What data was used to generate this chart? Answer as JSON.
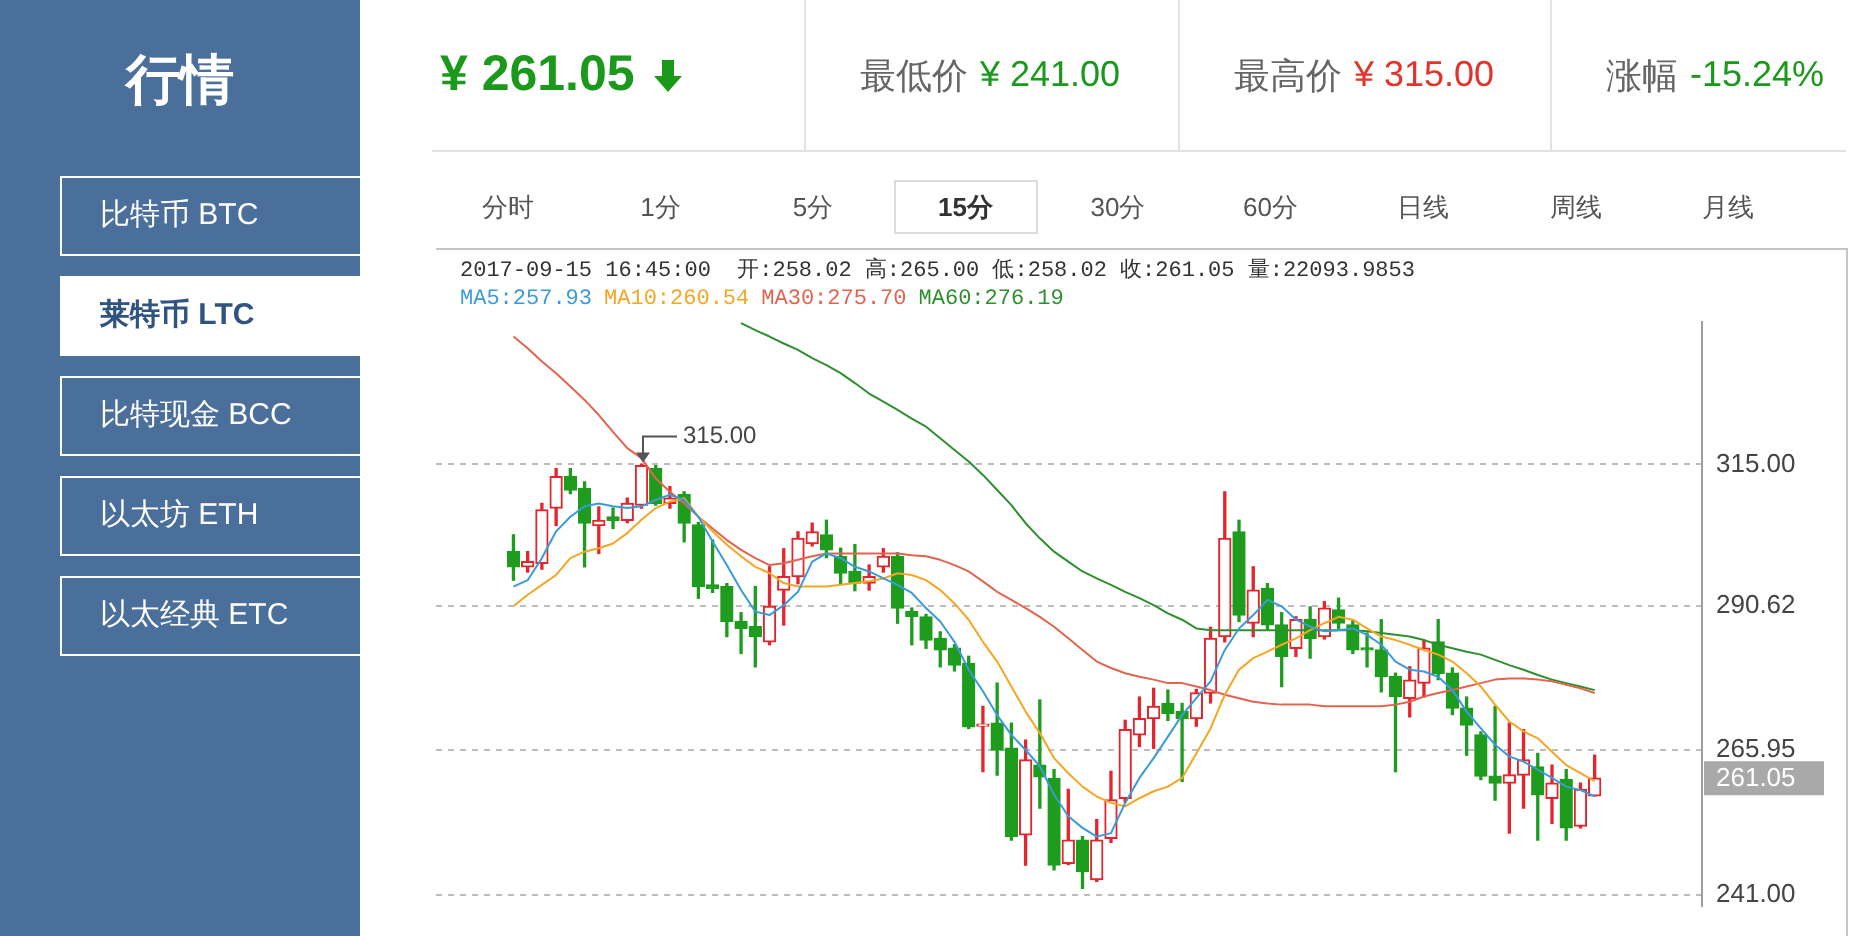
{
  "chart_data": [
    {
      "type": "other",
      "title": "行情",
      "annotations": [
        "比特币 BTC",
        "莱特币 LTC",
        "比特现金 BCC",
        "以太坊 ETH",
        "以太经典 ETC"
      ]
    },
    {
      "type": "other",
      "annotations": [
        "¥ 261.05",
        "最低价 ¥ 241.00",
        "最高价 ¥ 315.00",
        "涨幅 -15.24%"
      ]
    },
    {
      "type": "other",
      "annotations": [
        "分时",
        "1分",
        "5分",
        "15分",
        "30分",
        "60分",
        "日线",
        "周线",
        "月线"
      ]
    },
    {
      "type": "candlestick",
      "categories": [
        null,
        null,
        null,
        null,
        null,
        null,
        null,
        null,
        null,
        null,
        null,
        null,
        null,
        null,
        null,
        null,
        null,
        null,
        null,
        null,
        null,
        null,
        null,
        null,
        null,
        null,
        null,
        null,
        null,
        null,
        null,
        null,
        null,
        null,
        null,
        null,
        null,
        null,
        null,
        null,
        null,
        null,
        null,
        null,
        null,
        null,
        null,
        null,
        null,
        null,
        null,
        null,
        null,
        null,
        null,
        null,
        null,
        null,
        null,
        null,
        null,
        null,
        null,
        null,
        null,
        null,
        null,
        null,
        null,
        null,
        null,
        null,
        null,
        null,
        null,
        null,
        null
      ],
      "ohlc": [
        [
          300.0,
          302.9,
          295.1,
          297.4
        ],
        [
          297.4,
          300.0,
          296.5,
          298.3
        ],
        [
          298.0,
          308.3,
          297.0,
          307.2
        ],
        [
          307.5,
          314.3,
          304.5,
          312.9
        ],
        [
          312.9,
          314.3,
          310.0,
          310.6
        ],
        [
          310.9,
          312.0,
          297.4,
          304.9
        ],
        [
          304.5,
          307.7,
          299.7,
          305.4
        ],
        [
          306.0,
          307.5,
          304.0,
          305.4
        ],
        [
          305.4,
          309.2,
          305.0,
          308.3
        ],
        [
          308.0,
          315.0,
          307.5,
          314.8
        ],
        [
          314.3,
          314.8,
          308.0,
          308.3
        ],
        [
          308.3,
          311.2,
          307.5,
          309.2
        ],
        [
          309.8,
          310.3,
          301.7,
          304.9
        ],
        [
          304.6,
          305.0,
          292.0,
          294.0
        ],
        [
          294.3,
          302.0,
          293.0,
          293.7
        ],
        [
          294.0,
          294.5,
          285.4,
          288.0
        ],
        [
          288.0,
          289.5,
          282.5,
          286.8
        ],
        [
          287.1,
          294.0,
          280.2,
          285.4
        ],
        [
          284.5,
          297.4,
          284.0,
          290.6
        ],
        [
          293.4,
          300.5,
          287.4,
          295.7
        ],
        [
          295.7,
          303.4,
          294.5,
          302.3
        ],
        [
          301.4,
          304.9,
          301.0,
          303.4
        ],
        [
          302.9,
          305.4,
          299.0,
          300.3
        ],
        [
          299.2,
          300.6,
          294.5,
          296.3
        ],
        [
          296.6,
          301.2,
          293.3,
          294.6
        ],
        [
          294.6,
          297.7,
          293.4,
          295.7
        ],
        [
          297.4,
          300.5,
          296.5,
          299.2
        ],
        [
          299.2,
          299.8,
          287.7,
          290.3
        ],
        [
          289.7,
          290.3,
          284.0,
          288.9
        ],
        [
          288.8,
          289.2,
          283.4,
          284.8
        ],
        [
          285.1,
          286.2,
          280.2,
          283.1
        ],
        [
          283.4,
          284.0,
          279.5,
          280.5
        ],
        [
          280.8,
          282.0,
          269.6,
          269.9
        ],
        [
          270.0,
          273.4,
          262.2,
          270.2
        ],
        [
          270.5,
          277.4,
          261.6,
          265.9
        ],
        [
          266.2,
          270.5,
          250.4,
          251.0
        ],
        [
          251.3,
          267.6,
          246.1,
          264.2
        ],
        [
          263.3,
          274.5,
          255.9,
          261.3
        ],
        [
          261.0,
          262.5,
          245.3,
          246.1
        ],
        [
          246.4,
          259.1,
          246.2,
          250.4
        ],
        [
          250.4,
          251.0,
          242.1,
          245.0
        ],
        [
          243.6,
          253.9,
          243.3,
          250.4
        ],
        [
          250.7,
          262.2,
          250.0,
          257.3
        ],
        [
          257.6,
          271.0,
          257.0,
          269.4
        ],
        [
          268.5,
          275.0,
          266.5,
          271.3
        ],
        [
          271.3,
          276.5,
          266.2,
          273.4
        ],
        [
          273.9,
          276.2,
          271.0,
          272.2
        ],
        [
          272.5,
          273.9,
          260.5,
          271.3
        ],
        [
          271.3,
          276.3,
          270.0,
          275.7
        ],
        [
          275.7,
          287.0,
          274.0,
          285.1
        ],
        [
          285.4,
          310.3,
          284.5,
          302.3
        ],
        [
          303.4,
          305.4,
          288.0,
          289.1
        ],
        [
          287.7,
          297.4,
          285.4,
          293.4
        ],
        [
          293.7,
          294.5,
          286.5,
          287.4
        ],
        [
          287.4,
          289.5,
          276.8,
          282.0
        ],
        [
          283.4,
          288.8,
          282.0,
          288.3
        ],
        [
          288.3,
          290.5,
          281.7,
          285.1
        ],
        [
          285.4,
          291.4,
          285.0,
          290.3
        ],
        [
          290.0,
          292.0,
          286.8,
          287.7
        ],
        [
          287.4,
          288.3,
          282.5,
          283.1
        ],
        [
          283.4,
          286.0,
          280.2,
          283.1
        ],
        [
          283.1,
          288.3,
          275.9,
          278.5
        ],
        [
          278.5,
          279.1,
          262.2,
          275.1
        ],
        [
          274.8,
          280.2,
          271.6,
          277.9
        ],
        [
          277.4,
          284.8,
          275.0,
          283.4
        ],
        [
          284.5,
          288.3,
          278.0,
          279.1
        ],
        [
          279.1,
          280.0,
          272.0,
          273.1
        ],
        [
          273.1,
          275.0,
          265.0,
          270.2
        ],
        [
          268.5,
          269.0,
          260.8,
          261.4
        ],
        [
          261.4,
          273.4,
          257.3,
          260.2
        ],
        [
          260.2,
          270.5,
          251.6,
          261.6
        ],
        [
          261.6,
          269.4,
          255.9,
          264.2
        ],
        [
          263.0,
          265.3,
          250.4,
          258.2
        ],
        [
          257.6,
          263.3,
          253.3,
          260.2
        ],
        [
          260.8,
          262.5,
          250.4,
          252.5
        ],
        [
          252.8,
          260.2,
          252.5,
          259.1
        ],
        [
          258.02,
          265.0,
          258.02,
          261.05
        ]
      ],
      "colors": [
        "#1e9c1e",
        "#e3262d",
        "#e3262d",
        "#e3262d",
        "#1e9c1e",
        "#1e9c1e",
        "#e3262d",
        "#1e9c1e",
        "#e3262d",
        "#e3262d",
        "#1e9c1e",
        "#e3262d",
        "#1e9c1e",
        "#1e9c1e",
        "#1e9c1e",
        "#1e9c1e",
        "#1e9c1e",
        "#1e9c1e",
        "#e3262d",
        "#e3262d",
        "#e3262d",
        "#e3262d",
        "#1e9c1e",
        "#1e9c1e",
        "#1e9c1e",
        "#e3262d",
        "#e3262d",
        "#1e9c1e",
        "#1e9c1e",
        "#1e9c1e",
        "#1e9c1e",
        "#1e9c1e",
        "#1e9c1e",
        "#e3262d",
        "#1e9c1e",
        "#1e9c1e",
        "#e3262d",
        "#1e9c1e",
        "#1e9c1e",
        "#e3262d",
        "#1e9c1e",
        "#e3262d",
        "#e3262d",
        "#e3262d",
        "#e3262d",
        "#e3262d",
        "#1e9c1e",
        "#1e9c1e",
        "#e3262d",
        "#e3262d",
        "#e3262d",
        "#1e9c1e",
        "#e3262d",
        "#1e9c1e",
        "#1e9c1e",
        "#e3262d",
        "#1e9c1e",
        "#e3262d",
        "#1e9c1e",
        "#1e9c1e",
        "#1e9c1e",
        "#1e9c1e",
        "#1e9c1e",
        "#e3262d",
        "#e3262d",
        "#1e9c1e",
        "#1e9c1e",
        "#1e9c1e",
        "#1e9c1e",
        "#1e9c1e",
        "#e3262d",
        "#e3262d",
        "#1e9c1e",
        "#e3262d",
        "#1e9c1e",
        "#e3262d",
        "#e3262d"
      ],
      "series": [
        {
          "name": "MA5:257.93",
          "type": "line",
          "color": "#3b9bd9",
          "values": [
            294.0,
            295.1,
            298.9,
            303.5,
            306.0,
            307.8,
            308.3,
            307.8,
            307.5,
            307.8,
            308.9,
            309.8,
            308.9,
            306.0,
            301.7,
            297.7,
            293.4,
            289.7,
            289.1,
            290.8,
            293.1,
            298.3,
            299.7,
            298.9,
            297.4,
            296.6,
            295.4,
            294.3,
            292.9,
            290.3,
            288.0,
            284.5,
            279.7,
            276.0,
            271.9,
            268.5,
            265.9,
            263.1,
            258.2,
            254.5,
            252.5,
            251.0,
            251.6,
            256.8,
            261.1,
            264.5,
            268.2,
            271.9,
            274.8,
            277.7,
            283.1,
            286.8,
            289.1,
            291.7,
            290.6,
            288.3,
            287.1,
            286.3,
            286.5,
            286.8,
            285.7,
            284.0,
            281.1,
            279.7,
            279.4,
            278.5,
            276.2,
            272.5,
            269.6,
            266.8,
            264.8,
            263.9,
            262.5,
            261.1,
            259.6,
            259.0,
            257.93
          ]
        },
        {
          "name": "MA10:260.54",
          "type": "line",
          "color": "#f5a623",
          "values": [
            290.6,
            292.6,
            294.3,
            296.0,
            298.9,
            300.0,
            300.6,
            301.4,
            303.2,
            305.5,
            307.5,
            308.6,
            309.2,
            306.0,
            303.5,
            301.2,
            299.2,
            297.4,
            296.3,
            294.6,
            294.0,
            294.0,
            294.0,
            294.3,
            294.6,
            294.9,
            295.4,
            296.3,
            296.0,
            295.1,
            293.4,
            291.1,
            288.3,
            284.5,
            281.1,
            276.8,
            272.5,
            268.8,
            264.5,
            261.9,
            259.6,
            257.9,
            256.8,
            256.2,
            257.6,
            258.8,
            259.6,
            261.1,
            265.3,
            269.6,
            275.4,
            279.7,
            281.7,
            282.8,
            284.0,
            285.1,
            286.5,
            287.7,
            288.8,
            288.3,
            286.8,
            285.4,
            284.8,
            284.0,
            283.1,
            282.3,
            281.1,
            279.1,
            276.8,
            273.7,
            270.8,
            269.1,
            267.9,
            265.6,
            263.3,
            261.9,
            260.54
          ]
        },
        {
          "name": "MA30:275.70",
          "type": "line",
          "color": "#e2644f",
          "values": [
            337.0,
            335.0,
            332.7,
            330.7,
            328.4,
            326.1,
            323.5,
            320.6,
            317.8,
            316.1,
            312.6,
            310.3,
            308.3,
            306.0,
            304.0,
            302.0,
            300.3,
            298.9,
            297.7,
            298.0,
            298.6,
            299.2,
            299.7,
            299.7,
            299.7,
            299.7,
            299.7,
            299.7,
            299.4,
            299.2,
            298.6,
            297.7,
            296.6,
            294.9,
            293.1,
            291.7,
            290.3,
            288.8,
            287.1,
            285.1,
            283.1,
            281.1,
            280.0,
            279.1,
            278.5,
            278.0,
            277.4,
            277.4,
            276.8,
            276.2,
            275.4,
            274.8,
            274.2,
            273.9,
            273.7,
            273.7,
            273.7,
            273.4,
            273.4,
            273.4,
            273.4,
            273.4,
            273.7,
            274.2,
            275.1,
            275.7,
            276.2,
            276.8,
            277.4,
            278.0,
            278.2,
            278.2,
            278.0,
            277.7,
            277.1,
            276.5,
            275.7
          ]
        },
        {
          "name": "MA60:276.19",
          "type": "line",
          "color": "#2f8f2f",
          "values": [
            null,
            null,
            null,
            null,
            null,
            null,
            null,
            null,
            null,
            null,
            null,
            null,
            null,
            null,
            null,
            null,
            339.3,
            338.1,
            337.0,
            335.8,
            334.7,
            333.3,
            332.1,
            330.7,
            329.0,
            327.2,
            325.8,
            324.4,
            322.9,
            321.5,
            319.5,
            317.5,
            315.5,
            313.2,
            310.6,
            308.0,
            304.9,
            302.3,
            300.0,
            298.3,
            296.6,
            295.4,
            294.3,
            293.1,
            292.0,
            290.8,
            289.4,
            288.3,
            286.8,
            286.5,
            286.5,
            286.5,
            286.5,
            286.5,
            286.5,
            286.5,
            286.5,
            286.5,
            286.5,
            286.5,
            286.3,
            286.0,
            285.7,
            285.4,
            284.8,
            284.0,
            283.4,
            282.8,
            282.3,
            281.4,
            280.5,
            279.7,
            278.8,
            278.0,
            277.4,
            276.8,
            276.19
          ]
        }
      ],
      "ylim": [
        239,
        339.5
      ],
      "yticks": [
        {
          "value": 315,
          "label": "315.00"
        },
        290.62,
        265.95,
        {
          "value": 241,
          "label": "241.00"
        }
      ],
      "grid": "y",
      "tick_labels": "y",
      "legend": "top left",
      "annotations": [
        "2017-09-15 16:45:00  开:258.02 高:265.00 低:258.02 收:261.05 量:22093.9853",
        "315.00",
        "261.05"
      ]
    }
  ]
}
